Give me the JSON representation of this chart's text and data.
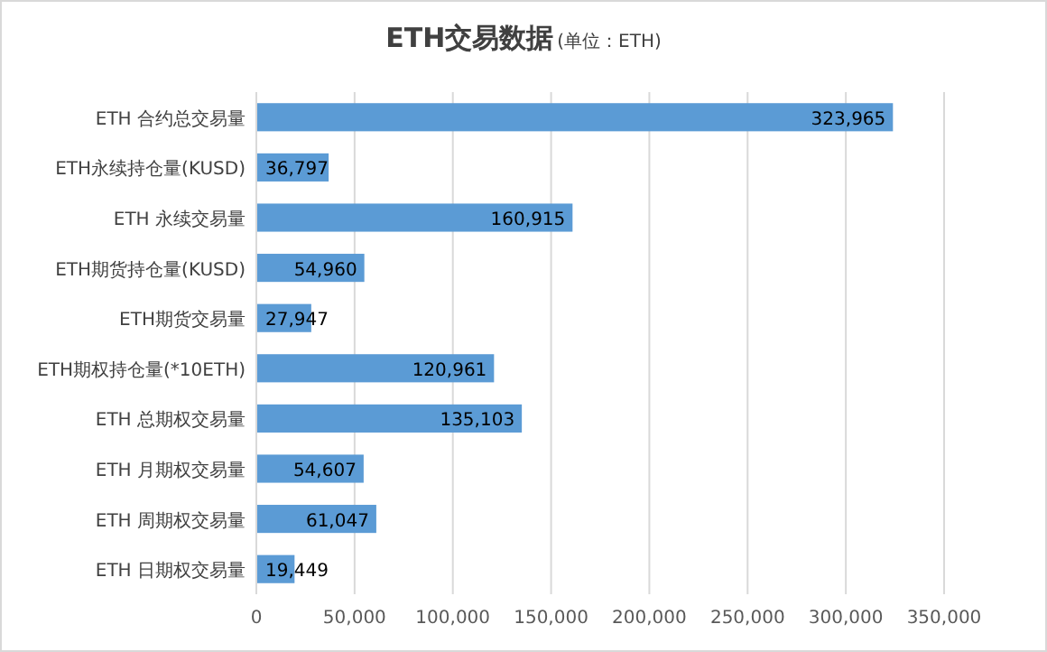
{
  "chart_data": {
    "type": "bar",
    "orientation": "horizontal",
    "title": "ETH交易数据",
    "subtitle": "(单位：ETH)",
    "categories": [
      "ETH 合约总交易量",
      "ETH永续持仓量(KUSD)",
      "ETH 永续交易量",
      "ETH期货持仓量(KUSD)",
      "ETH期货交易量",
      "ETH期权持仓量(*10ETH)",
      "ETH 总期权交易量",
      "ETH 月期权交易量",
      "ETH 周期权交易量",
      "ETH 日期权交易量"
    ],
    "values": [
      323965,
      36797,
      160915,
      54960,
      27947,
      120961,
      135103,
      54607,
      61047,
      19449
    ],
    "value_labels": [
      "323,965",
      "36,797",
      "160,915",
      "54,960",
      "27,947",
      "120,961",
      "135,103",
      "54,607",
      "61,047",
      "19,449"
    ],
    "color": "#5b9bd5",
    "grid": "x",
    "xlim": [
      0,
      350000
    ],
    "xticks": [
      {
        "value": 0,
        "label": "0"
      },
      {
        "value": 50000,
        "label": "50,000"
      },
      {
        "value": 100000,
        "label": "100,000"
      },
      {
        "value": 150000,
        "label": "150,000"
      },
      {
        "value": 200000,
        "label": "200,000"
      },
      {
        "value": 250000,
        "label": "250,000"
      },
      {
        "value": 300000,
        "label": "300,000"
      },
      {
        "value": 350000,
        "label": "350,000"
      }
    ]
  }
}
